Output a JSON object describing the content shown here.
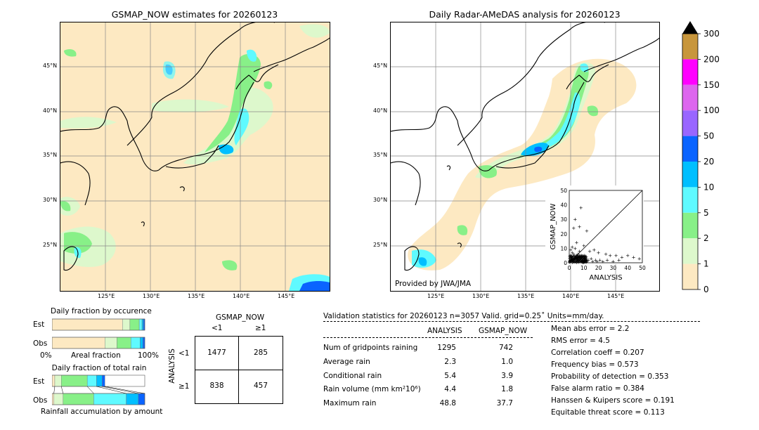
{
  "left_map": {
    "title": "GSMAP_NOW estimates for 20260123",
    "lat_labels": [
      "45°N",
      "40°N",
      "35°N",
      "30°N",
      "25°N"
    ],
    "lon_labels": [
      "125°E",
      "130°E",
      "135°E",
      "140°E",
      "145°E"
    ]
  },
  "right_map": {
    "title": "Daily Radar-AMeDAS analysis for 20260123",
    "lat_labels": [
      "45°N",
      "40°N",
      "35°N",
      "30°N",
      "25°N"
    ],
    "lon_labels": [
      "125°E",
      "130°E",
      "135°E",
      "140°E",
      "145°E"
    ],
    "credit": "Provided by JWA/JMA"
  },
  "colorbar": {
    "ticks": [
      "300",
      "200",
      "150",
      "100",
      "50",
      "20",
      "10",
      "5",
      "2",
      "1",
      "0"
    ],
    "colors": [
      "#c8963c",
      "#ff00ff",
      "#dd66ee",
      "#9966ff",
      "#0a64ff",
      "#00bfff",
      "#5ffaff",
      "#88f088",
      "#ddf8cc",
      "#fde9c2"
    ]
  },
  "chart_data": [
    {
      "type": "scatter",
      "xlabel": "ANALYSIS",
      "ylabel": "GSMAP_NOW",
      "xlim": [
        0,
        50
      ],
      "ylim": [
        0,
        50
      ],
      "xticks": [
        "0",
        "10",
        "20",
        "30",
        "40",
        "50"
      ],
      "yticks": [
        "0",
        "10",
        "20",
        "30",
        "40",
        "50"
      ],
      "points": [
        [
          8,
          38
        ],
        [
          4,
          30
        ],
        [
          7,
          25
        ],
        [
          12,
          22
        ],
        [
          3,
          24
        ],
        [
          5,
          14
        ],
        [
          10,
          12
        ],
        [
          14,
          8
        ],
        [
          17,
          9
        ],
        [
          20,
          7
        ],
        [
          25,
          6
        ],
        [
          28,
          5
        ],
        [
          32,
          5
        ],
        [
          36,
          4
        ],
        [
          40,
          5
        ],
        [
          44,
          4
        ],
        [
          48,
          3
        ],
        [
          2,
          2
        ],
        [
          3,
          3
        ],
        [
          4,
          1
        ],
        [
          6,
          2
        ],
        [
          8,
          4
        ],
        [
          9,
          1
        ],
        [
          11,
          3
        ],
        [
          12,
          1
        ],
        [
          13,
          2
        ],
        [
          15,
          3
        ],
        [
          16,
          1
        ],
        [
          18,
          2
        ],
        [
          19,
          1
        ],
        [
          21,
          2
        ],
        [
          23,
          1
        ],
        [
          26,
          2
        ],
        [
          30,
          1
        ],
        [
          34,
          2
        ],
        [
          1,
          5
        ],
        [
          2,
          7
        ],
        [
          3,
          6
        ],
        [
          5,
          5
        ],
        [
          6,
          6
        ],
        [
          7,
          8
        ],
        [
          1,
          9
        ],
        [
          2,
          11
        ],
        [
          4,
          10
        ]
      ]
    },
    {
      "type": "bar",
      "title": "Daily fraction by occurence",
      "categories": [
        "Est",
        "Obs"
      ],
      "xlabels": [
        "0%",
        "Areal fraction",
        "100%"
      ],
      "segment_colors": [
        "#fde9c2",
        "#ddf8cc",
        "#88f088",
        "#5ffaff",
        "#00bfff",
        "#0a64ff"
      ],
      "series_values": [
        [
          0.76,
          0.08,
          0.1,
          0.03,
          0.015,
          0.015
        ],
        [
          0.57,
          0.13,
          0.15,
          0.1,
          0.03,
          0.02
        ]
      ]
    },
    {
      "type": "bar",
      "title": "Daily fraction of total rain",
      "categories": [
        "Est",
        "Obs"
      ],
      "xlabel": "Rainfall accumulation by amount",
      "segment_colors": [
        "#fde9c2",
        "#ddf8cc",
        "#88f088",
        "#5ffaff",
        "#00bfff",
        "#0a64ff"
      ],
      "series_values": [
        [
          0.03,
          0.07,
          0.28,
          0.1,
          0.06,
          0.03
        ],
        [
          0.02,
          0.1,
          0.33,
          0.35,
          0.13,
          0.07
        ]
      ]
    }
  ],
  "contingency": {
    "col_header": "GSMAP_NOW",
    "col_labels": [
      "<1",
      "≥1"
    ],
    "row_header": "ANALYSIS",
    "row_labels": [
      "<1",
      "≥1"
    ],
    "cells": [
      [
        "1477",
        "285"
      ],
      [
        "838",
        "457"
      ]
    ]
  },
  "validation": {
    "header": "Validation statistics for 20260123  n=3057 Valid. grid=0.25˚ Units=mm/day.",
    "col_analysis": "ANALYSIS",
    "col_gsmap": "GSMAP_NOW",
    "rows": [
      {
        "label": "Num of gridpoints raining",
        "analysis": "1295",
        "gsmap": "742"
      },
      {
        "label": "Average rain",
        "analysis": "2.3",
        "gsmap": "1.0"
      },
      {
        "label": "Conditional rain",
        "analysis": "5.4",
        "gsmap": "3.9"
      },
      {
        "label": "Rain volume (mm km²10⁶)",
        "analysis": "4.4",
        "gsmap": "1.8"
      },
      {
        "label": "Maximum rain",
        "analysis": "48.8",
        "gsmap": "37.7"
      }
    ],
    "scores": [
      "Mean abs error =    2.2",
      "RMS error =    4.5",
      "Correlation coeff =  0.207",
      "Frequency bias =  0.573",
      "Probability of detection =  0.353",
      "False alarm ratio =  0.384",
      "Hanssen & Kuipers score =  0.191",
      "Equitable threat score =  0.113"
    ]
  }
}
